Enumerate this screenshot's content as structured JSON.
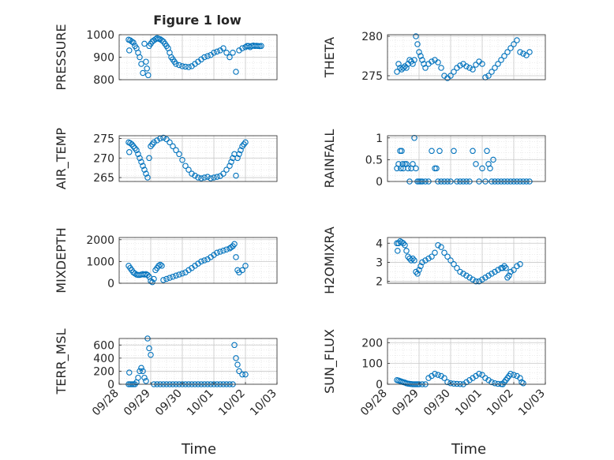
{
  "figure": {
    "title": "Figure 1 low",
    "xlabel": "Time",
    "marker_color": "#0072bd",
    "grid": true,
    "minor_grid": true
  },
  "chart_data": [
    {
      "type": "scatter",
      "ylabel": "PRESSURE",
      "xticks": [],
      "yticks": [
        "800",
        "900",
        "1000"
      ],
      "xlim": [
        0,
        5
      ],
      "ylim": [
        800,
        1000
      ],
      "x": [
        0.3,
        0.32,
        0.35,
        0.4,
        0.45,
        0.5,
        0.55,
        0.6,
        0.65,
        0.7,
        0.75,
        0.8,
        0.85,
        0.88,
        0.92,
        0.95,
        1.0,
        1.05,
        1.1,
        1.15,
        1.2,
        1.25,
        1.3,
        1.35,
        1.4,
        1.45,
        1.5,
        1.55,
        1.6,
        1.65,
        1.7,
        1.75,
        1.8,
        1.9,
        2.0,
        2.1,
        2.2,
        2.3,
        2.4,
        2.5,
        2.6,
        2.7,
        2.8,
        2.9,
        3.0,
        3.1,
        3.2,
        3.3,
        3.4,
        3.5,
        3.6,
        3.7,
        3.8,
        3.9,
        4.0,
        4.05,
        4.1,
        4.15,
        4.2,
        4.25,
        4.3,
        4.35,
        4.4,
        4.45,
        4.5
      ],
      "y": [
        978,
        930,
        975,
        970,
        965,
        950,
        940,
        920,
        900,
        870,
        830,
        960,
        880,
        850,
        820,
        950,
        960,
        970,
        975,
        980,
        985,
        982,
        980,
        975,
        970,
        960,
        950,
        940,
        920,
        900,
        890,
        880,
        870,
        865,
        860,
        858,
        856,
        860,
        870,
        880,
        890,
        900,
        905,
        910,
        920,
        925,
        930,
        940,
        920,
        900,
        920,
        835,
        930,
        940,
        945,
        950,
        950,
        945,
        950,
        952,
        950,
        951,
        950,
        949,
        950
      ]
    },
    {
      "type": "scatter",
      "ylabel": "THETA",
      "xticks": [],
      "yticks": [
        "275",
        "280"
      ],
      "xlim": [
        0,
        5
      ],
      "ylim": [
        274.5,
        280.2
      ],
      "x": [
        0.3,
        0.35,
        0.4,
        0.45,
        0.5,
        0.55,
        0.6,
        0.65,
        0.7,
        0.75,
        0.8,
        0.85,
        0.9,
        0.95,
        1.0,
        1.05,
        1.1,
        1.15,
        1.2,
        1.3,
        1.4,
        1.5,
        1.6,
        1.7,
        1.8,
        1.9,
        2.0,
        2.1,
        2.2,
        2.3,
        2.4,
        2.5,
        2.6,
        2.7,
        2.8,
        2.9,
        3.0,
        3.1,
        3.2,
        3.3,
        3.4,
        3.5,
        3.6,
        3.7,
        3.8,
        3.9,
        4.0,
        4.1,
        4.2,
        4.3,
        4.4,
        4.5
      ],
      "y": [
        275.5,
        276.5,
        276,
        275.8,
        276,
        276.2,
        276,
        276.5,
        277,
        276.8,
        276.5,
        277,
        280,
        279,
        278,
        277.5,
        277,
        276.5,
        276,
        276.5,
        276.8,
        277,
        276.7,
        276,
        275,
        274.7,
        275,
        275.5,
        276,
        276.3,
        276.5,
        276.2,
        276,
        275.8,
        276.4,
        276.8,
        276.5,
        274.8,
        275,
        275.5,
        276,
        276.5,
        277,
        277.5,
        278,
        278.5,
        279,
        279.5,
        278,
        277.8,
        277.6,
        278
      ]
    },
    {
      "type": "scatter",
      "ylabel": "AIR_TEMP",
      "xticks": [],
      "yticks": [
        "265",
        "270",
        "275"
      ],
      "xlim": [
        0,
        5
      ],
      "ylim": [
        264,
        275.7
      ],
      "x": [
        0.3,
        0.32,
        0.35,
        0.4,
        0.45,
        0.5,
        0.55,
        0.6,
        0.65,
        0.7,
        0.75,
        0.8,
        0.85,
        0.9,
        0.95,
        1.0,
        1.05,
        1.1,
        1.2,
        1.3,
        1.4,
        1.5,
        1.6,
        1.7,
        1.8,
        1.9,
        2.0,
        2.1,
        2.2,
        2.3,
        2.4,
        2.5,
        2.6,
        2.7,
        2.8,
        2.9,
        3.0,
        3.1,
        3.2,
        3.3,
        3.4,
        3.5,
        3.55,
        3.6,
        3.65,
        3.7,
        3.75,
        3.8,
        3.85,
        3.9,
        3.95,
        4.0
      ],
      "y": [
        274,
        271.5,
        273.8,
        273.5,
        273,
        272.5,
        272,
        271,
        270,
        269,
        268,
        267,
        266,
        265,
        270,
        273,
        273.5,
        274,
        274.5,
        275,
        275.2,
        274.8,
        274,
        273,
        272,
        271,
        269.5,
        268,
        267,
        266,
        265.5,
        265,
        264.8,
        265,
        265.2,
        264.8,
        265,
        265.2,
        265.4,
        266,
        267,
        268,
        269,
        270,
        271,
        265.5,
        270,
        271,
        272,
        273,
        273.5,
        274
      ]
    },
    {
      "type": "scatter",
      "ylabel": "RAINFALL",
      "xticks": [],
      "yticks": [
        "0",
        "0.5",
        "1"
      ],
      "xlim": [
        0,
        5
      ],
      "ylim": [
        0,
        1.05
      ],
      "x": [
        0.3,
        0.35,
        0.4,
        0.42,
        0.45,
        0.48,
        0.5,
        0.55,
        0.6,
        0.65,
        0.7,
        0.75,
        0.8,
        0.85,
        0.9,
        0.95,
        1.0,
        1.05,
        1.1,
        1.2,
        1.3,
        1.4,
        1.5,
        1.55,
        1.6,
        1.65,
        1.7,
        1.8,
        1.9,
        2.0,
        2.1,
        2.2,
        2.3,
        2.4,
        2.5,
        2.6,
        2.7,
        2.8,
        2.9,
        3.0,
        3.1,
        3.15,
        3.2,
        3.25,
        3.3,
        3.35,
        3.4,
        3.5,
        3.6,
        3.7,
        3.8,
        3.9,
        4.0,
        4.1,
        4.2,
        4.3,
        4.4,
        4.5
      ],
      "y": [
        0.3,
        0.4,
        0.7,
        0.3,
        0.7,
        0.4,
        0.3,
        0.4,
        0.4,
        0.3,
        0,
        0.3,
        0.4,
        1,
        0.3,
        0,
        0,
        0,
        0,
        0,
        0,
        0.7,
        0.3,
        0.3,
        0,
        0.7,
        0,
        0,
        0,
        0,
        0.7,
        0,
        0,
        0,
        0,
        0,
        0.7,
        0.4,
        0,
        0.3,
        0,
        0.7,
        0.4,
        0.3,
        0,
        0.5,
        0,
        0,
        0,
        0,
        0,
        0,
        0,
        0,
        0,
        0,
        0,
        0
      ]
    },
    {
      "type": "scatter",
      "ylabel": "MIXDEPTH",
      "xticks": [],
      "yticks": [
        "0",
        "1000",
        "2000"
      ],
      "xlim": [
        0,
        5
      ],
      "ylim": [
        0,
        2100
      ],
      "x": [
        0.3,
        0.35,
        0.4,
        0.45,
        0.5,
        0.55,
        0.6,
        0.65,
        0.7,
        0.75,
        0.8,
        0.85,
        0.9,
        0.95,
        1.0,
        1.05,
        1.1,
        1.15,
        1.2,
        1.25,
        1.3,
        1.35,
        1.4,
        1.5,
        1.6,
        1.7,
        1.8,
        1.9,
        2.0,
        2.1,
        2.2,
        2.3,
        2.4,
        2.5,
        2.6,
        2.7,
        2.8,
        2.9,
        3.0,
        3.1,
        3.2,
        3.3,
        3.4,
        3.5,
        3.55,
        3.6,
        3.65,
        3.7,
        3.75,
        3.8,
        3.9,
        4.0
      ],
      "y": [
        800,
        700,
        600,
        500,
        450,
        400,
        380,
        380,
        400,
        420,
        400,
        420,
        380,
        300,
        100,
        50,
        200,
        600,
        700,
        800,
        850,
        800,
        150,
        200,
        250,
        300,
        350,
        400,
        450,
        500,
        600,
        700,
        800,
        900,
        1000,
        1050,
        1100,
        1200,
        1300,
        1400,
        1450,
        1500,
        1550,
        1600,
        1650,
        1700,
        1800,
        1200,
        600,
        500,
        600,
        800
      ]
    },
    {
      "type": "scatter",
      "ylabel": "H2OMIXRA",
      "xticks": [],
      "yticks": [
        "2",
        "3",
        "4"
      ],
      "xlim": [
        0,
        5
      ],
      "ylim": [
        1.9,
        4.3
      ],
      "x": [
        0.3,
        0.32,
        0.35,
        0.4,
        0.45,
        0.5,
        0.55,
        0.6,
        0.65,
        0.7,
        0.75,
        0.8,
        0.85,
        0.9,
        0.95,
        1.0,
        1.05,
        1.1,
        1.2,
        1.3,
        1.4,
        1.5,
        1.6,
        1.7,
        1.8,
        1.9,
        2.0,
        2.1,
        2.2,
        2.3,
        2.4,
        2.5,
        2.6,
        2.7,
        2.8,
        2.9,
        3.0,
        3.1,
        3.2,
        3.3,
        3.4,
        3.5,
        3.6,
        3.65,
        3.7,
        3.75,
        3.8,
        3.85,
        3.9,
        4.0,
        4.1,
        4.2
      ],
      "y": [
        4,
        3.6,
        4,
        4.1,
        4.05,
        4,
        3.9,
        3.6,
        3.3,
        3.2,
        3.1,
        3.2,
        3.1,
        2.5,
        2.4,
        2.6,
        2.8,
        3,
        3.1,
        3.2,
        3.3,
        3.5,
        3.9,
        3.8,
        3.5,
        3.3,
        3.1,
        2.9,
        2.7,
        2.5,
        2.4,
        2.3,
        2.2,
        2.1,
        2,
        2,
        2.1,
        2.2,
        2.3,
        2.4,
        2.5,
        2.6,
        2.7,
        2.7,
        2.8,
        2.7,
        2.2,
        2.3,
        2.5,
        2.6,
        2.8,
        2.9
      ]
    },
    {
      "type": "scatter",
      "ylabel": "TERR_MSL",
      "xticks": [
        "09/28",
        "09/29",
        "09/30",
        "10/01",
        "10/02",
        "10/03"
      ],
      "yticks": [
        "0",
        "200",
        "400",
        "600"
      ],
      "xlim": [
        0,
        5
      ],
      "ylim": [
        0,
        700
      ],
      "x": [
        0.3,
        0.32,
        0.35,
        0.4,
        0.45,
        0.5,
        0.55,
        0.6,
        0.65,
        0.7,
        0.75,
        0.8,
        0.85,
        0.9,
        0.95,
        1.0,
        1.1,
        1.2,
        1.3,
        1.4,
        1.5,
        1.6,
        1.7,
        1.8,
        1.9,
        2.0,
        2.1,
        2.2,
        2.3,
        2.4,
        2.5,
        2.6,
        2.7,
        2.8,
        2.9,
        3.0,
        3.1,
        3.2,
        3.3,
        3.4,
        3.5,
        3.6,
        3.65,
        3.7,
        3.75,
        3.8,
        3.9,
        4.0
      ],
      "y": [
        0,
        180,
        0,
        0,
        0,
        0,
        30,
        100,
        200,
        250,
        200,
        100,
        50,
        700,
        550,
        450,
        0,
        0,
        0,
        0,
        0,
        0,
        0,
        0,
        0,
        0,
        0,
        0,
        0,
        0,
        0,
        0,
        0,
        0,
        0,
        0,
        0,
        0,
        0,
        0,
        0,
        0,
        600,
        400,
        300,
        200,
        150,
        150
      ]
    },
    {
      "type": "scatter",
      "ylabel": "SUN_FLUX",
      "xticks": [
        "09/28",
        "09/29",
        "09/30",
        "10/01",
        "10/02",
        "10/03"
      ],
      "yticks": [
        "0",
        "100",
        "200"
      ],
      "xlim": [
        0,
        5
      ],
      "ylim": [
        0,
        220
      ],
      "x": [
        0.3,
        0.35,
        0.4,
        0.45,
        0.5,
        0.55,
        0.6,
        0.65,
        0.7,
        0.75,
        0.8,
        0.85,
        0.9,
        0.95,
        1.0,
        1.1,
        1.2,
        1.3,
        1.4,
        1.5,
        1.6,
        1.7,
        1.8,
        1.9,
        2.0,
        2.1,
        2.2,
        2.3,
        2.4,
        2.5,
        2.6,
        2.7,
        2.8,
        2.9,
        3.0,
        3.1,
        3.2,
        3.3,
        3.4,
        3.5,
        3.6,
        3.65,
        3.7,
        3.75,
        3.8,
        3.85,
        3.9,
        4.0,
        4.1,
        4.2,
        4.25,
        4.3
      ],
      "y": [
        20,
        18,
        15,
        12,
        10,
        8,
        5,
        3,
        2,
        1,
        0,
        0,
        0,
        0,
        0,
        0,
        0,
        30,
        40,
        50,
        45,
        40,
        30,
        10,
        5,
        3,
        2,
        1,
        0,
        10,
        20,
        30,
        40,
        50,
        45,
        30,
        20,
        10,
        5,
        2,
        1,
        0,
        10,
        20,
        30,
        40,
        50,
        45,
        40,
        30,
        10,
        5
      ]
    }
  ]
}
